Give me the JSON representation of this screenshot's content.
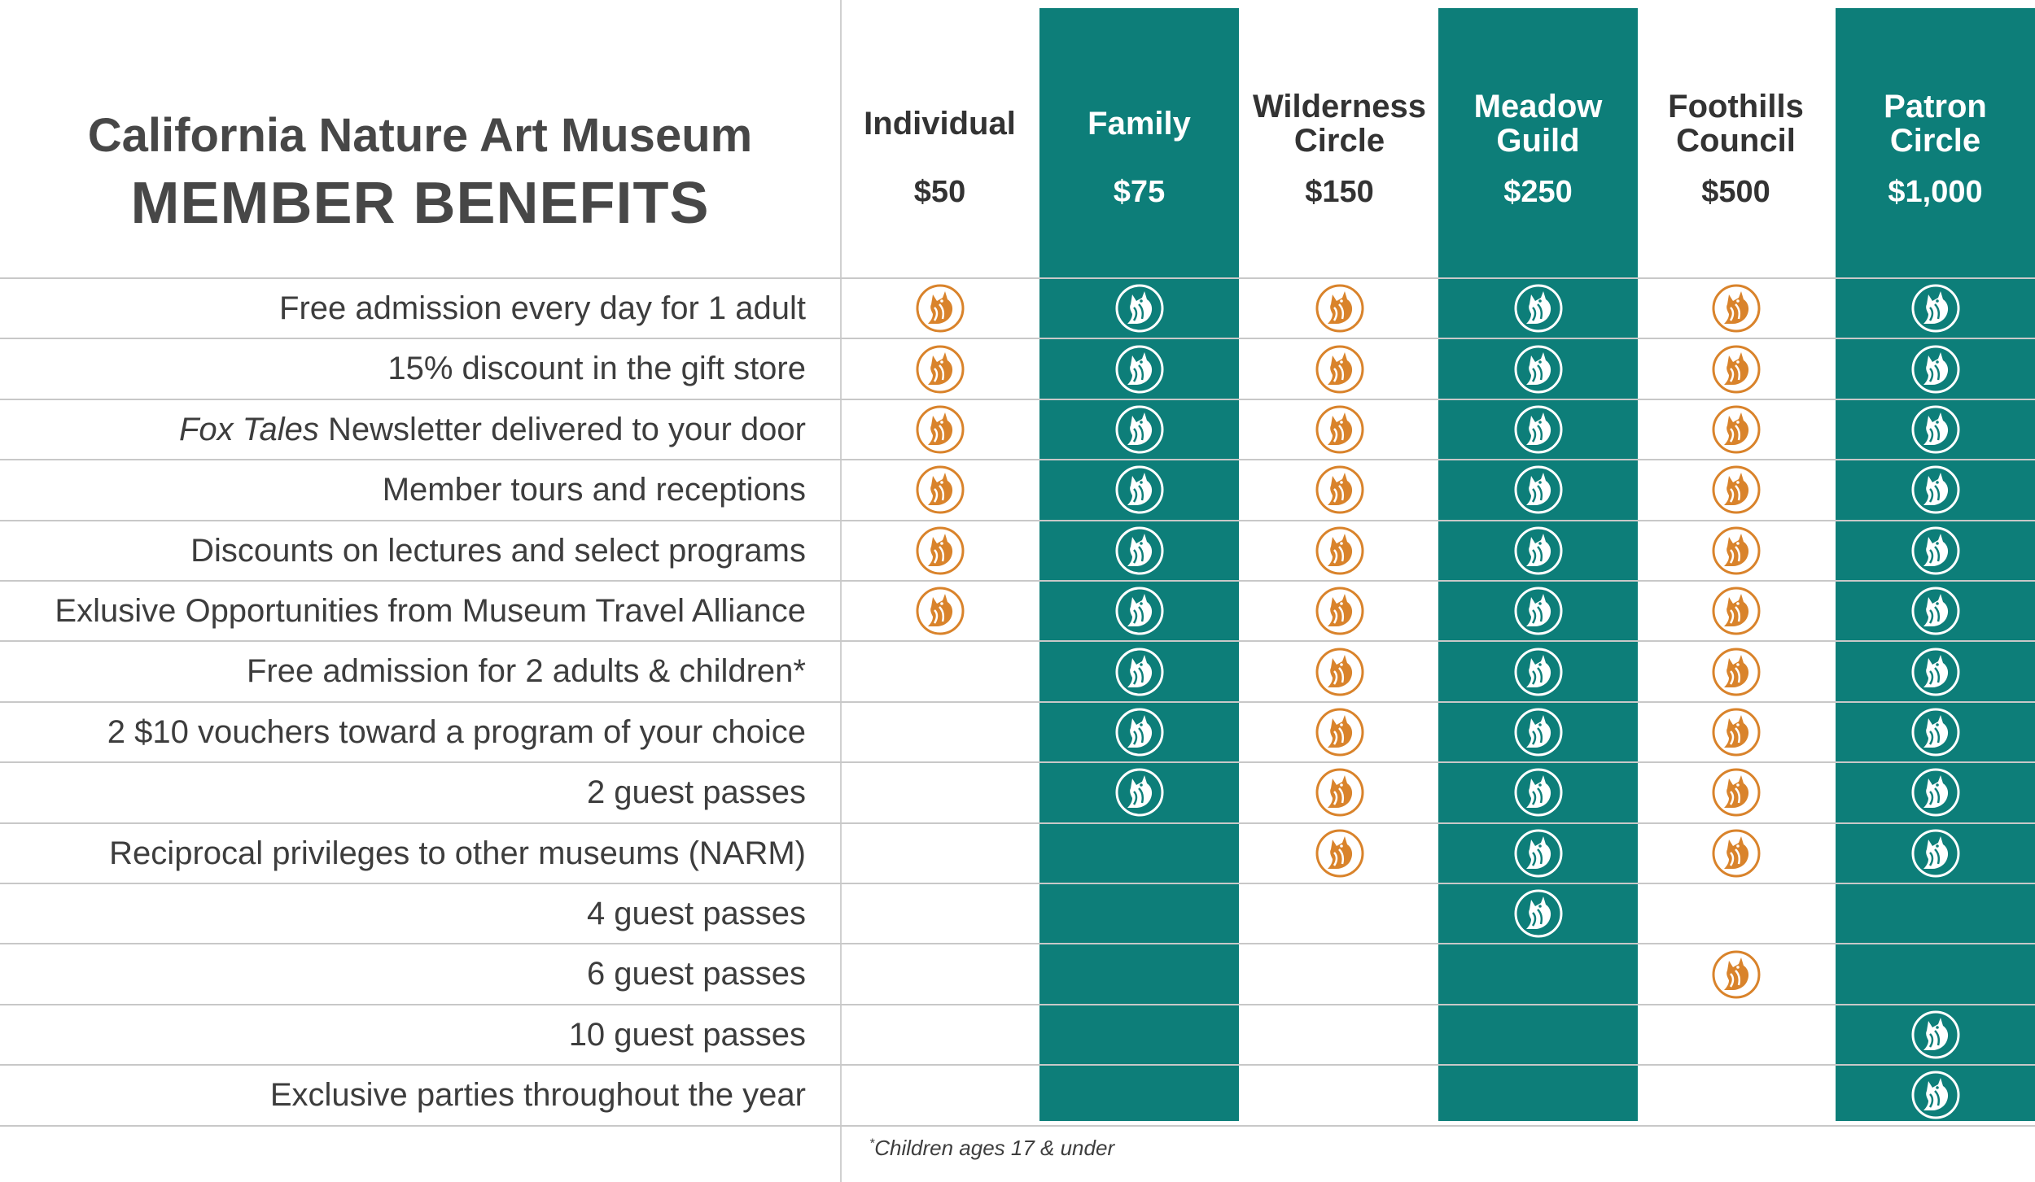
{
  "header": {
    "museum_name": "California Nature Art Museum",
    "subtitle": "MEMBER BENEFITS"
  },
  "colors": {
    "teal": "#0d7e79",
    "orange": "#d9832b",
    "text": "#3d3d3d"
  },
  "tiers": [
    {
      "name": "Individual",
      "price": "$50"
    },
    {
      "name": "Family",
      "price": "$75"
    },
    {
      "name": "Wilderness Circle",
      "price": "$150"
    },
    {
      "name": "Meadow Guild",
      "price": "$250"
    },
    {
      "name": "Foothills Council",
      "price": "$500"
    },
    {
      "name": "Patron Circle",
      "price": "$1,000"
    }
  ],
  "benefits": [
    {
      "label_italic": "",
      "label": "Free admission every day for 1 adult",
      "tiers": [
        1,
        1,
        1,
        1,
        1,
        1
      ]
    },
    {
      "label_italic": "",
      "label": "15% discount in the gift store",
      "tiers": [
        1,
        1,
        1,
        1,
        1,
        1
      ]
    },
    {
      "label_italic": "Fox Tales",
      "label": " Newsletter delivered to your door",
      "tiers": [
        1,
        1,
        1,
        1,
        1,
        1
      ]
    },
    {
      "label_italic": "",
      "label": "Member tours and receptions",
      "tiers": [
        1,
        1,
        1,
        1,
        1,
        1
      ]
    },
    {
      "label_italic": "",
      "label": "Discounts on lectures and select programs",
      "tiers": [
        1,
        1,
        1,
        1,
        1,
        1
      ]
    },
    {
      "label_italic": "",
      "label": "Exlusive Opportunities from Museum Travel Alliance",
      "tiers": [
        1,
        1,
        1,
        1,
        1,
        1
      ]
    },
    {
      "label_italic": "",
      "label": "Free admission for 2 adults & children*",
      "tiers": [
        0,
        1,
        1,
        1,
        1,
        1
      ]
    },
    {
      "label_italic": "",
      "label": "2 $10 vouchers toward a program of your choice",
      "tiers": [
        0,
        1,
        1,
        1,
        1,
        1
      ]
    },
    {
      "label_italic": "",
      "label": "2 guest passes",
      "tiers": [
        0,
        1,
        1,
        1,
        1,
        1
      ]
    },
    {
      "label_italic": "",
      "label": "Reciprocal privileges to other museums (NARM)",
      "tiers": [
        0,
        0,
        1,
        1,
        1,
        1
      ]
    },
    {
      "label_italic": "",
      "label": "4 guest passes",
      "tiers": [
        0,
        0,
        0,
        1,
        0,
        0
      ]
    },
    {
      "label_italic": "",
      "label": "6 guest passes",
      "tiers": [
        0,
        0,
        0,
        0,
        1,
        0
      ]
    },
    {
      "label_italic": "",
      "label": "10 guest passes",
      "tiers": [
        0,
        0,
        0,
        0,
        0,
        1
      ]
    },
    {
      "label_italic": "",
      "label": "Exclusive parties throughout the year",
      "tiers": [
        0,
        0,
        0,
        0,
        0,
        1
      ]
    }
  ],
  "footnote": {
    "marker": "*",
    "text": "Children ages 17 & under"
  },
  "icon_name": "fox-logo-icon"
}
